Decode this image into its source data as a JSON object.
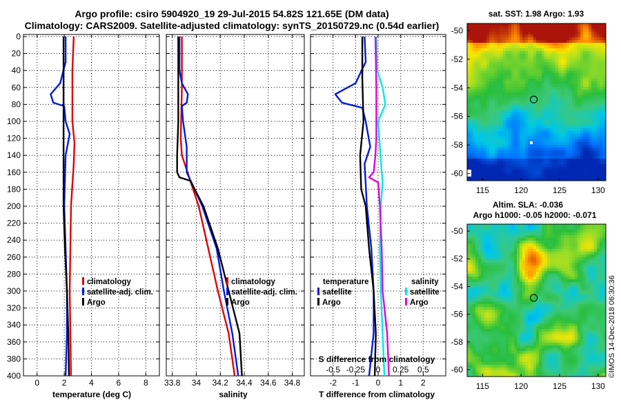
{
  "title": {
    "line1": "Argo profile: csiro 5904920_19 29-Jul-2015 54.82S 121.65E (DM data)",
    "line2": "Climatology: CARS2009. Satellite-adjusted climatology: synTS_20150729.nc (0.54d earlier)"
  },
  "colors": {
    "climatology": "#e00000",
    "satellite": "#0018e0",
    "argo": "#000000",
    "sal_satellite": "#00e8e8",
    "sal_argo": "#e000e0"
  },
  "chart_data": [
    {
      "type": "line",
      "id": "temperature",
      "xlabel": "temperature (deg C)",
      "ylabel": "depth",
      "xlim": [
        -1,
        9
      ],
      "ylim": [
        400,
        0
      ],
      "xticks": [
        "0",
        "2",
        "4",
        "6",
        "8"
      ],
      "yticks": [
        "0",
        "20",
        "40",
        "60",
        "80",
        "100",
        "120",
        "140",
        "160",
        "180",
        "200",
        "220",
        "240",
        "260",
        "280",
        "300",
        "320",
        "340",
        "360",
        "380",
        "400"
      ],
      "legend": [
        "climatology",
        "satellite-adj. clim.",
        "Argo"
      ],
      "series": [
        {
          "name": "climatology",
          "points": [
            [
              2.7,
              0
            ],
            [
              2.6,
              40
            ],
            [
              2.6,
              100
            ],
            [
              2.75,
              125
            ],
            [
              2.7,
              150
            ],
            [
              2.5,
              200
            ],
            [
              2.45,
              250
            ],
            [
              2.4,
              300
            ],
            [
              2.45,
              350
            ],
            [
              2.5,
              400
            ]
          ]
        },
        {
          "name": "satellite-adj. clim.",
          "points": [
            [
              2.1,
              0
            ],
            [
              2.1,
              30
            ],
            [
              1.7,
              55
            ],
            [
              1.0,
              68
            ],
            [
              1.2,
              78
            ],
            [
              2.0,
              82
            ],
            [
              2.1,
              100
            ],
            [
              2.4,
              115
            ],
            [
              2.1,
              140
            ],
            [
              2.0,
              200
            ],
            [
              2.1,
              250
            ],
            [
              2.2,
              300
            ],
            [
              2.2,
              350
            ],
            [
              2.1,
              400
            ]
          ]
        },
        {
          "name": "Argo",
          "points": [
            [
              1.95,
              0
            ],
            [
              1.95,
              100
            ],
            [
              1.95,
              150
            ],
            [
              1.95,
              200
            ],
            [
              2.05,
              250
            ],
            [
              2.2,
              300
            ],
            [
              2.3,
              350
            ],
            [
              2.35,
              400
            ]
          ]
        }
      ]
    },
    {
      "type": "line",
      "id": "salinity",
      "xlabel": "salinity",
      "xlim": [
        33.75,
        34.9
      ],
      "ylim": [
        400,
        0
      ],
      "xticks": [
        "33.8",
        "34",
        "34.2",
        "34.4",
        "34.6",
        "34.8"
      ],
      "legend": [
        "climatology",
        "satellite-adj. clim.",
        "Argo"
      ],
      "series": [
        {
          "name": "climatology",
          "points": [
            [
              33.88,
              0
            ],
            [
              33.88,
              60
            ],
            [
              33.87,
              120
            ],
            [
              33.88,
              140
            ],
            [
              33.95,
              170
            ],
            [
              34.02,
              200
            ],
            [
              34.1,
              250
            ],
            [
              34.18,
              300
            ],
            [
              34.27,
              350
            ],
            [
              34.32,
              400
            ]
          ]
        },
        {
          "name": "satellite-adj. clim.",
          "points": [
            [
              33.86,
              0
            ],
            [
              33.86,
              40
            ],
            [
              33.88,
              55
            ],
            [
              33.93,
              68
            ],
            [
              33.92,
              78
            ],
            [
              33.88,
              82
            ],
            [
              33.89,
              100
            ],
            [
              33.92,
              130
            ],
            [
              33.92,
              160
            ],
            [
              33.96,
              172
            ],
            [
              34.05,
              200
            ],
            [
              34.17,
              250
            ],
            [
              34.23,
              300
            ],
            [
              34.3,
              350
            ],
            [
              34.35,
              400
            ]
          ]
        },
        {
          "name": "Argo",
          "points": [
            [
              33.85,
              0
            ],
            [
              33.85,
              100
            ],
            [
              33.84,
              140
            ],
            [
              33.84,
              160
            ],
            [
              33.86,
              166
            ],
            [
              33.95,
              170
            ],
            [
              34.06,
              200
            ],
            [
              34.18,
              250
            ],
            [
              34.27,
              300
            ],
            [
              34.36,
              350
            ],
            [
              34.38,
              400
            ]
          ]
        }
      ]
    },
    {
      "type": "line",
      "id": "difference",
      "xlabel": "T difference from climatology",
      "x2label": "S difference from climatology",
      "xlim": [
        -3,
        3
      ],
      "x2lim": [
        -0.75,
        0.75
      ],
      "ylim": [
        400,
        0
      ],
      "xticks": [
        "-2",
        "-1",
        "0",
        "1",
        "2"
      ],
      "x2ticks": [
        "-0.5",
        "-0.25",
        "0",
        "0.25",
        "0.5"
      ],
      "legend_temperature": {
        "heading": "temperature",
        "items": [
          "satellite",
          "Argo"
        ]
      },
      "legend_salinity": {
        "heading": "salinity",
        "items": [
          "satellite",
          "Argo"
        ]
      },
      "series": [
        {
          "name": "temperature satellite",
          "points": [
            [
              -0.6,
              0
            ],
            [
              -0.55,
              30
            ],
            [
              -1.0,
              55
            ],
            [
              -1.9,
              68
            ],
            [
              -1.6,
              78
            ],
            [
              -0.7,
              84
            ],
            [
              -0.55,
              100
            ],
            [
              -0.45,
              115
            ],
            [
              -0.35,
              130
            ],
            [
              -0.6,
              150
            ],
            [
              -0.5,
              200
            ],
            [
              -0.3,
              250
            ],
            [
              -0.2,
              300
            ],
            [
              -0.2,
              350
            ],
            [
              -0.4,
              400
            ]
          ]
        },
        {
          "name": "temperature Argo",
          "points": [
            [
              -0.7,
              0
            ],
            [
              -0.7,
              50
            ],
            [
              -0.65,
              100
            ],
            [
              -0.8,
              140
            ],
            [
              -0.75,
              180
            ],
            [
              -0.55,
              200
            ],
            [
              -0.4,
              250
            ],
            [
              -0.2,
              300
            ],
            [
              -0.1,
              350
            ],
            [
              -0.15,
              400
            ]
          ]
        },
        {
          "name": "salinity satellite",
          "points": [
            [
              -0.02,
              0
            ],
            [
              -0.01,
              40
            ],
            [
              0.05,
              60
            ],
            [
              0.08,
              80
            ],
            [
              0.0,
              100
            ],
            [
              0.02,
              130
            ],
            [
              0.04,
              160
            ],
            [
              0.05,
              172
            ],
            [
              0.03,
              200
            ],
            [
              0.02,
              250
            ],
            [
              0.03,
              300
            ],
            [
              0.05,
              350
            ],
            [
              0.07,
              400
            ]
          ]
        },
        {
          "name": "salinity Argo",
          "points": [
            [
              -0.03,
              0
            ],
            [
              -0.02,
              60
            ],
            [
              -0.02,
              120
            ],
            [
              -0.03,
              140
            ],
            [
              -0.05,
              160
            ],
            [
              -0.1,
              166
            ],
            [
              0.0,
              172
            ],
            [
              0.02,
              200
            ],
            [
              0.04,
              250
            ],
            [
              0.05,
              300
            ],
            [
              0.1,
              350
            ],
            [
              0.12,
              400
            ]
          ]
        }
      ]
    }
  ],
  "maps": [
    {
      "id": "sst_map",
      "title": "sat. SST: 1.98 Argo: 1.93",
      "xticks": [
        "115",
        "120",
        "125",
        "130"
      ],
      "yticks": [
        "-50",
        "-52",
        "-54",
        "-56",
        "-58",
        "-60"
      ],
      "lon_range": [
        113,
        131
      ],
      "lat_range": [
        -60.5,
        -49.5
      ],
      "marker": {
        "lon": 121.65,
        "lat": -54.82
      }
    },
    {
      "id": "sla_map",
      "title_line1": "Altim. SLA: -0.036",
      "title_line2": "Argo h1000: -0.05 h2000: -0.071",
      "xticks": [
        "115",
        "120",
        "125",
        "130"
      ],
      "yticks": [
        "-50",
        "-52",
        "-54",
        "-56",
        "-58",
        "-60"
      ],
      "lon_range": [
        113,
        131
      ],
      "lat_range": [
        -60.5,
        -49.5
      ],
      "marker": {
        "lon": 121.65,
        "lat": -54.82
      }
    }
  ],
  "footer": "©IMOS 14-Dec-2018 06:30:36"
}
